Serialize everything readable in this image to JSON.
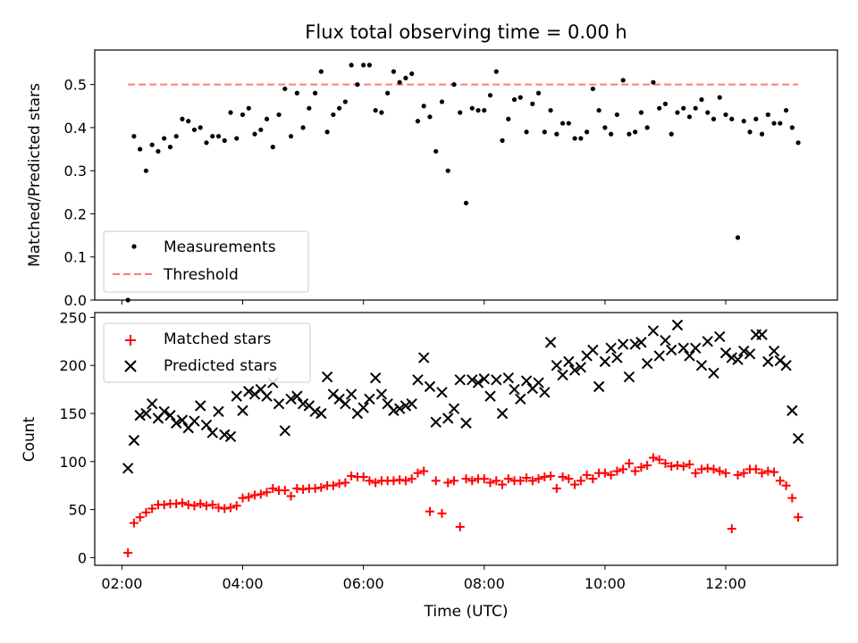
{
  "chart_data": [
    {
      "type": "scatter",
      "title": "Flux total observing time = 0.00 h",
      "xlabel": "",
      "ylabel": "Matched/Predicted stars",
      "xlim": [
        1.55,
        13.85
      ],
      "ylim": [
        0,
        0.58
      ],
      "yticks": [
        0.0,
        0.1,
        0.2,
        0.3,
        0.4,
        0.5
      ],
      "ytick_labels": [
        "0.0",
        "0.1",
        "0.2",
        "0.3",
        "0.4",
        "0.5"
      ],
      "xticks": [
        2,
        4,
        6,
        8,
        10,
        12
      ],
      "legend": {
        "position": "lower-left"
      },
      "series": [
        {
          "name": "Measurements",
          "marker": "dot",
          "color": "#000000",
          "x": [
            2.1,
            2.2,
            2.3,
            2.4,
            2.5,
            2.6,
            2.7,
            2.8,
            2.9,
            3.0,
            3.1,
            3.2,
            3.3,
            3.4,
            3.5,
            3.6,
            3.7,
            3.8,
            3.9,
            4.0,
            4.1,
            4.2,
            4.3,
            4.4,
            4.5,
            4.6,
            4.7,
            4.8,
            4.9,
            5.0,
            5.1,
            5.2,
            5.3,
            5.4,
            5.5,
            5.6,
            5.7,
            5.8,
            5.9,
            6.0,
            6.1,
            6.2,
            6.3,
            6.4,
            6.5,
            6.6,
            6.7,
            6.8,
            6.9,
            7.0,
            7.1,
            7.2,
            7.3,
            7.4,
            7.5,
            7.6,
            7.7,
            7.8,
            7.9,
            8.0,
            8.1,
            8.2,
            8.3,
            8.4,
            8.5,
            8.6,
            8.7,
            8.8,
            8.9,
            9.0,
            9.1,
            9.2,
            9.3,
            9.4,
            9.5,
            9.6,
            9.7,
            9.8,
            9.9,
            10.0,
            10.1,
            10.2,
            10.3,
            10.4,
            10.5,
            10.6,
            10.7,
            10.8,
            10.9,
            11.0,
            11.1,
            11.2,
            11.3,
            11.4,
            11.5,
            11.6,
            11.7,
            11.8,
            11.9,
            12.0,
            12.1,
            12.2,
            12.3,
            12.4,
            12.5,
            12.6,
            12.7,
            12.8,
            12.9,
            13.0,
            13.1,
            13.2
          ],
          "y": [
            0.0,
            0.38,
            0.35,
            0.3,
            0.36,
            0.345,
            0.375,
            0.355,
            0.38,
            0.42,
            0.415,
            0.395,
            0.4,
            0.365,
            0.38,
            0.38,
            0.37,
            0.435,
            0.375,
            0.43,
            0.445,
            0.385,
            0.395,
            0.42,
            0.355,
            0.43,
            0.49,
            0.38,
            0.48,
            0.4,
            0.445,
            0.48,
            0.53,
            0.39,
            0.43,
            0.445,
            0.46,
            0.545,
            0.5,
            0.545,
            0.545,
            0.44,
            0.435,
            0.48,
            0.53,
            0.505,
            0.515,
            0.525,
            0.415,
            0.45,
            0.425,
            0.345,
            0.46,
            0.3,
            0.5,
            0.435,
            0.225,
            0.445,
            0.44,
            0.44,
            0.475,
            0.53,
            0.37,
            0.42,
            0.465,
            0.47,
            0.39,
            0.455,
            0.48,
            0.39,
            0.44,
            0.385,
            0.41,
            0.41,
            0.375,
            0.375,
            0.39,
            0.49,
            0.44,
            0.4,
            0.385,
            0.43,
            0.51,
            0.385,
            0.39,
            0.435,
            0.4,
            0.505,
            0.445,
            0.455,
            0.385,
            0.435,
            0.445,
            0.425,
            0.445,
            0.465,
            0.435,
            0.42,
            0.47,
            0.43,
            0.42,
            0.145,
            0.415,
            0.39,
            0.42,
            0.385,
            0.43,
            0.41,
            0.41,
            0.44,
            0.4,
            0.365
          ]
        },
        {
          "name": "Threshold",
          "type": "line",
          "style": "dashed",
          "color": "#ff7a7a",
          "x": [
            2.1,
            13.2
          ],
          "y": [
            0.5,
            0.5
          ]
        }
      ]
    },
    {
      "type": "scatter",
      "title": "",
      "xlabel": "Time (UTC)",
      "ylabel": "Count",
      "xlim": [
        1.55,
        13.85
      ],
      "ylim": [
        -8,
        255
      ],
      "yticks": [
        0,
        50,
        100,
        150,
        200,
        250
      ],
      "ytick_labels": [
        "0",
        "50",
        "100",
        "150",
        "200",
        "250"
      ],
      "xticks": [
        2,
        4,
        6,
        8,
        10,
        12
      ],
      "xtick_labels": [
        "02:00",
        "04:00",
        "06:00",
        "08:00",
        "10:00",
        "12:00"
      ],
      "legend": {
        "position": "upper-left"
      },
      "series": [
        {
          "name": "Matched stars",
          "marker": "plus",
          "color": "#ff0000",
          "x": [
            2.1,
            2.2,
            2.3,
            2.4,
            2.5,
            2.6,
            2.7,
            2.8,
            2.9,
            3.0,
            3.1,
            3.2,
            3.3,
            3.4,
            3.5,
            3.6,
            3.7,
            3.8,
            3.9,
            4.0,
            4.1,
            4.2,
            4.3,
            4.4,
            4.5,
            4.6,
            4.7,
            4.8,
            4.9,
            5.0,
            5.1,
            5.2,
            5.3,
            5.4,
            5.5,
            5.6,
            5.7,
            5.8,
            5.9,
            6.0,
            6.1,
            6.2,
            6.3,
            6.4,
            6.5,
            6.6,
            6.7,
            6.8,
            6.9,
            7.0,
            7.1,
            7.2,
            7.3,
            7.4,
            7.5,
            7.6,
            7.7,
            7.8,
            7.9,
            8.0,
            8.1,
            8.2,
            8.3,
            8.4,
            8.5,
            8.6,
            8.7,
            8.8,
            8.9,
            9.0,
            9.1,
            9.2,
            9.3,
            9.4,
            9.5,
            9.6,
            9.7,
            9.8,
            9.9,
            10.0,
            10.1,
            10.2,
            10.3,
            10.4,
            10.5,
            10.6,
            10.7,
            10.8,
            10.9,
            11.0,
            11.1,
            11.2,
            11.3,
            11.4,
            11.5,
            11.6,
            11.7,
            11.8,
            11.9,
            12.0,
            12.1,
            12.2,
            12.3,
            12.4,
            12.5,
            12.6,
            12.7,
            12.8,
            12.9,
            13.0,
            13.1,
            13.2
          ],
          "y": [
            5,
            36,
            42,
            47,
            51,
            55,
            55,
            56,
            56,
            57,
            55,
            54,
            56,
            54,
            55,
            52,
            51,
            52,
            54,
            62,
            63,
            65,
            66,
            68,
            72,
            70,
            70,
            64,
            72,
            71,
            72,
            72,
            73,
            75,
            75,
            77,
            78,
            85,
            84,
            84,
            80,
            78,
            80,
            80,
            80,
            81,
            80,
            82,
            88,
            90,
            48,
            80,
            46,
            78,
            80,
            32,
            82,
            80,
            82,
            82,
            78,
            80,
            76,
            82,
            80,
            80,
            83,
            80,
            82,
            84,
            85,
            72,
            84,
            82,
            76,
            80,
            86,
            82,
            88,
            88,
            86,
            90,
            92,
            98,
            90,
            94,
            96,
            104,
            102,
            98,
            95,
            96,
            95,
            97,
            88,
            92,
            93,
            92,
            90,
            88,
            30,
            86,
            88,
            92,
            92,
            88,
            90,
            89,
            80,
            75,
            62,
            42
          ]
        },
        {
          "name": "Predicted stars",
          "marker": "x",
          "color": "#000000",
          "x": [
            2.1,
            2.2,
            2.3,
            2.4,
            2.5,
            2.6,
            2.7,
            2.8,
            2.9,
            3.0,
            3.1,
            3.2,
            3.3,
            3.4,
            3.5,
            3.6,
            3.7,
            3.8,
            3.9,
            4.0,
            4.1,
            4.2,
            4.3,
            4.4,
            4.5,
            4.6,
            4.7,
            4.8,
            4.9,
            5.0,
            5.1,
            5.2,
            5.3,
            5.4,
            5.5,
            5.6,
            5.7,
            5.8,
            5.9,
            6.0,
            6.1,
            6.2,
            6.3,
            6.4,
            6.5,
            6.6,
            6.7,
            6.8,
            6.9,
            7.0,
            7.1,
            7.2,
            7.3,
            7.4,
            7.5,
            7.6,
            7.7,
            7.8,
            7.9,
            8.0,
            8.1,
            8.2,
            8.3,
            8.4,
            8.5,
            8.6,
            8.7,
            8.8,
            8.9,
            9.0,
            9.1,
            9.2,
            9.3,
            9.4,
            9.5,
            9.6,
            9.7,
            9.8,
            9.9,
            10.0,
            10.1,
            10.2,
            10.3,
            10.4,
            10.5,
            10.6,
            10.7,
            10.8,
            10.9,
            11.0,
            11.1,
            11.2,
            11.3,
            11.4,
            11.5,
            11.6,
            11.7,
            11.8,
            11.9,
            12.0,
            12.1,
            12.2,
            12.3,
            12.4,
            12.5,
            12.6,
            12.7,
            12.8,
            12.9,
            13.0,
            13.1,
            13.2
          ],
          "y": [
            93,
            122,
            148,
            150,
            160,
            145,
            152,
            148,
            140,
            143,
            135,
            142,
            158,
            138,
            130,
            152,
            128,
            126,
            168,
            153,
            173,
            170,
            175,
            168,
            182,
            160,
            132,
            165,
            168,
            160,
            158,
            152,
            150,
            188,
            170,
            165,
            160,
            170,
            150,
            156,
            165,
            187,
            170,
            160,
            153,
            155,
            158,
            160,
            185,
            208,
            178,
            141,
            172,
            145,
            155,
            185,
            140,
            185,
            182,
            186,
            168,
            185,
            150,
            187,
            175,
            165,
            184,
            176,
            182,
            172,
            224,
            200,
            190,
            204,
            195,
            198,
            210,
            216,
            178,
            204,
            218,
            208,
            222,
            188,
            222,
            224,
            202,
            236,
            210,
            226,
            216,
            242,
            218,
            210,
            218,
            200,
            225,
            192,
            230,
            213,
            208,
            206,
            215,
            212,
            232,
            232,
            204,
            215,
            205,
            200,
            153,
            124
          ]
        }
      ]
    }
  ]
}
